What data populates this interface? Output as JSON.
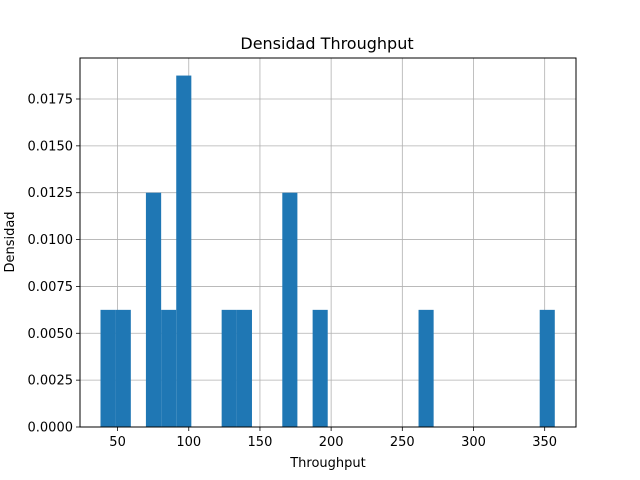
{
  "chart_data": {
    "type": "bar",
    "title": "Densidad Throughput",
    "xlabel": "Throughput",
    "ylabel": "Densidad",
    "xlim": [
      23.6,
      372.0
    ],
    "ylim": [
      0,
      0.019687
    ],
    "grid": true,
    "bar_color": "#1f77b4",
    "xticks": [
      50,
      100,
      150,
      200,
      250,
      300,
      350
    ],
    "xtick_labels": [
      "50",
      "100",
      "150",
      "200",
      "250",
      "300",
      "350"
    ],
    "yticks": [
      0.0,
      0.0025,
      0.005,
      0.0075,
      0.01,
      0.0125,
      0.015,
      0.0175
    ],
    "ytick_labels": [
      "0.0000",
      "0.0025",
      "0.0050",
      "0.0075",
      "0.0100",
      "0.0125",
      "0.0150",
      "0.0175"
    ],
    "bins": [
      {
        "x0": 38.0,
        "x1": 48.6,
        "value": 0.00625
      },
      {
        "x0": 48.6,
        "x1": 59.3,
        "value": 0.00625
      },
      {
        "x0": 69.9,
        "x1": 80.6,
        "value": 0.0125
      },
      {
        "x0": 80.6,
        "x1": 91.2,
        "value": 0.00625
      },
      {
        "x0": 91.2,
        "x1": 101.8,
        "value": 0.01875
      },
      {
        "x0": 123.1,
        "x1": 133.8,
        "value": 0.00625
      },
      {
        "x0": 133.8,
        "x1": 144.4,
        "value": 0.00625
      },
      {
        "x0": 165.7,
        "x1": 176.3,
        "value": 0.0125
      },
      {
        "x0": 187.0,
        "x1": 197.6,
        "value": 0.00625
      },
      {
        "x0": 261.4,
        "x1": 272.0,
        "value": 0.00625
      },
      {
        "x0": 346.5,
        "x1": 357.1,
        "value": 0.00625
      }
    ]
  }
}
